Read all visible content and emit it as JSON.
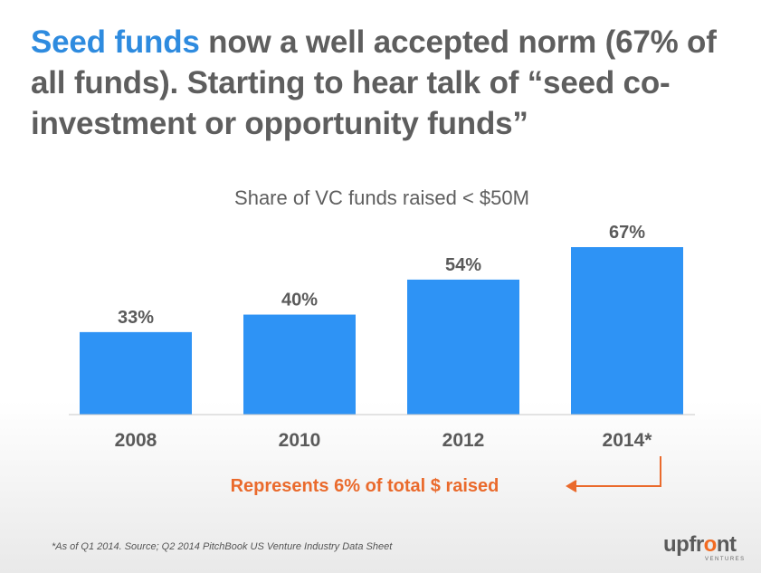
{
  "slide": {
    "title_highlight": "Seed funds",
    "title_rest": " now a well accepted norm (67% of all funds). Starting to hear talk of “seed co-investment or opportunity funds”",
    "footnote": "*As of Q1 2014.  Source; Q2 2014 PitchBook US Venture Industry Data Sheet",
    "logo_prefix": "upfr",
    "logo_accent": "o",
    "logo_suffix": "nt",
    "logo_subtitle": "VENTURES"
  },
  "chart_data": {
    "type": "bar",
    "title": "Share of VC funds raised < $50M",
    "categories": [
      "2008",
      "2010",
      "2012",
      "2014*"
    ],
    "values": [
      33,
      40,
      54,
      67
    ],
    "value_labels": [
      "33%",
      "40%",
      "54%",
      "67%"
    ],
    "ylim": [
      0,
      67
    ],
    "grid": false,
    "annotation": "Represents 6% of total $ raised",
    "colors": {
      "bar": "#2e93f5",
      "annotation": "#ea6a2c",
      "text": "#5a5a5a",
      "baseline": "#c8c8c8",
      "title": "#5e5e5e"
    }
  }
}
